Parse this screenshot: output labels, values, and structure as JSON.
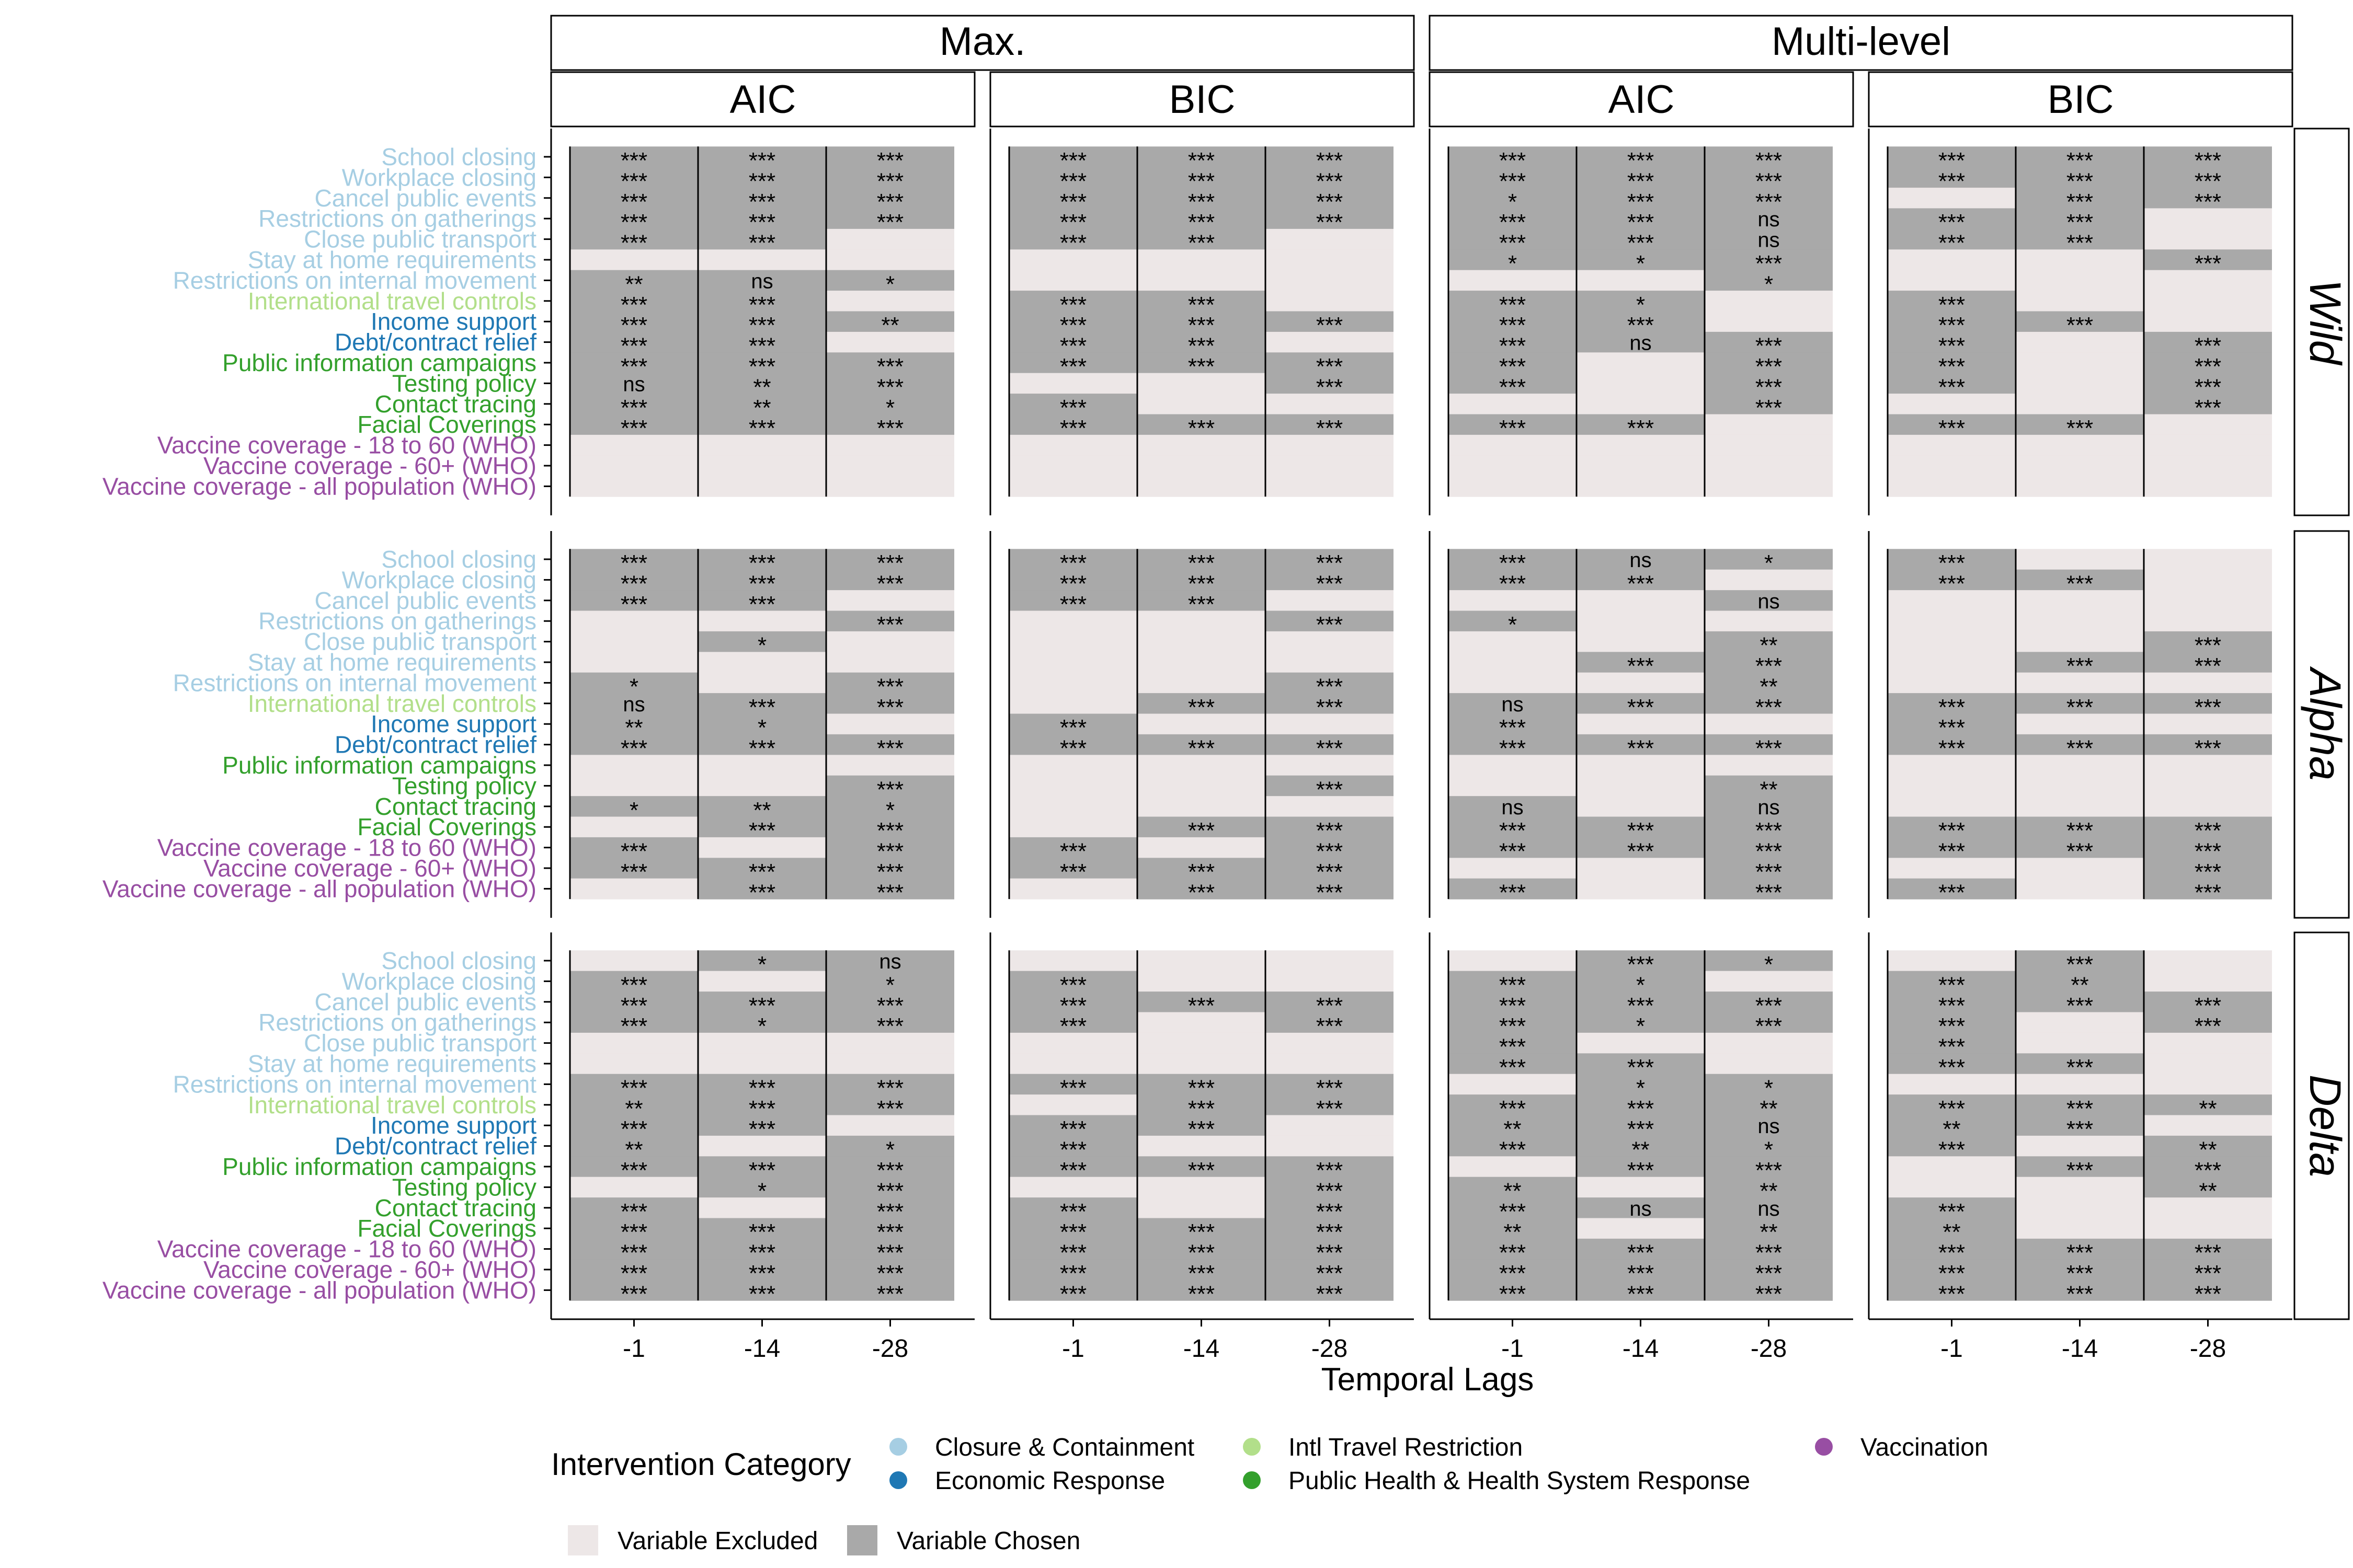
{
  "chart_data": {
    "type": "heatmap",
    "title": "",
    "xlabel": "Temporal Lags",
    "ylabel": "",
    "x": [
      "-1",
      "-14",
      "-28"
    ],
    "variables": [
      "School closing",
      "Workplace closing",
      "Cancel public events",
      "Restrictions on gatherings",
      "Close public transport",
      "Stay at home requirements",
      "Restrictions on internal movement",
      "International travel controls",
      "Income support",
      "Debt/contract relief",
      "Public information campaigns",
      "Testing policy",
      "Contact tracing",
      "Facial Coverings",
      "Vaccine coverage - 18 to 60 (WHO)",
      "Vaccine coverage - 60+ (WHO)",
      "Vaccine coverage - all population (WHO)"
    ],
    "variable_categories": [
      0,
      0,
      0,
      0,
      0,
      0,
      0,
      2,
      1,
      1,
      3,
      3,
      3,
      3,
      4,
      4,
      4
    ],
    "method_strips": [
      "Max.",
      "Multi-level"
    ],
    "criterion_strips": [
      "AIC",
      "BIC",
      "AIC",
      "BIC"
    ],
    "variants": [
      "Wild",
      "Alpha",
      "Delta"
    ],
    "legend": {
      "title": "Intervention Category",
      "categories": [
        {
          "name": "Closure & Containment",
          "color": "#a6cee3"
        },
        {
          "name": "Economic Response",
          "color": "#1f78b4"
        },
        {
          "name": "Intl Travel Restriction",
          "color": "#b2df8a"
        },
        {
          "name": "Public Health & Health System Response",
          "color": "#33a02c"
        },
        {
          "name": "Vaccination",
          "color": "#984ea3"
        }
      ],
      "fills": [
        {
          "name": "Variable Excluded",
          "color": "#ede7e7"
        },
        {
          "name": "Variable Chosen",
          "color": "#a9a9a9"
        }
      ]
    },
    "cells": {
      "Wild": [
        [
          [
            "***",
            "***",
            "***"
          ],
          [
            "***",
            "***",
            "***"
          ],
          [
            "***",
            "***",
            "***"
          ],
          [
            "***",
            "***",
            "***"
          ],
          [
            "***",
            "***",
            ""
          ],
          [
            "",
            "",
            ""
          ],
          [
            "**",
            "ns",
            "*"
          ],
          [
            "***",
            "***",
            ""
          ],
          [
            "***",
            "***",
            "**"
          ],
          [
            "***",
            "***",
            ""
          ],
          [
            "***",
            "***",
            "***"
          ],
          [
            "ns",
            "**",
            "***"
          ],
          [
            "***",
            "**",
            "*"
          ],
          [
            "***",
            "***",
            "***"
          ],
          [
            "",
            "",
            ""
          ],
          [
            "",
            "",
            ""
          ],
          [
            "",
            "",
            ""
          ]
        ],
        [
          [
            "***",
            "***",
            "***"
          ],
          [
            "***",
            "***",
            "***"
          ],
          [
            "***",
            "***",
            "***"
          ],
          [
            "***",
            "***",
            "***"
          ],
          [
            "***",
            "***",
            ""
          ],
          [
            "",
            "",
            ""
          ],
          [
            "",
            "",
            ""
          ],
          [
            "***",
            "***",
            ""
          ],
          [
            "***",
            "***",
            "***"
          ],
          [
            "***",
            "***",
            ""
          ],
          [
            "***",
            "***",
            "***"
          ],
          [
            "",
            "",
            "***"
          ],
          [
            "***",
            "",
            ""
          ],
          [
            "***",
            "***",
            "***"
          ],
          [
            "",
            "",
            ""
          ],
          [
            "",
            "",
            ""
          ],
          [
            "",
            "",
            ""
          ]
        ],
        [
          [
            "***",
            "***",
            "***"
          ],
          [
            "***",
            "***",
            "***"
          ],
          [
            "*",
            "***",
            "***"
          ],
          [
            "***",
            "***",
            "ns"
          ],
          [
            "***",
            "***",
            "ns"
          ],
          [
            "*",
            "*",
            "***"
          ],
          [
            "",
            "",
            "*"
          ],
          [
            "***",
            "*",
            ""
          ],
          [
            "***",
            "***",
            ""
          ],
          [
            "***",
            "ns",
            "***"
          ],
          [
            "***",
            "",
            "***"
          ],
          [
            "***",
            "",
            "***"
          ],
          [
            "",
            "",
            "***"
          ],
          [
            "***",
            "***",
            ""
          ],
          [
            "",
            "",
            ""
          ],
          [
            "",
            "",
            ""
          ],
          [
            "",
            "",
            ""
          ]
        ],
        [
          [
            "***",
            "***",
            "***"
          ],
          [
            "***",
            "***",
            "***"
          ],
          [
            "",
            "***",
            "***"
          ],
          [
            "***",
            "***",
            ""
          ],
          [
            "***",
            "***",
            ""
          ],
          [
            "",
            "",
            "***"
          ],
          [
            "",
            "",
            ""
          ],
          [
            "***",
            "",
            ""
          ],
          [
            "***",
            "***",
            ""
          ],
          [
            "***",
            "",
            "***"
          ],
          [
            "***",
            "",
            "***"
          ],
          [
            "***",
            "",
            "***"
          ],
          [
            "",
            "",
            "***"
          ],
          [
            "***",
            "***",
            ""
          ],
          [
            "",
            "",
            ""
          ],
          [
            "",
            "",
            ""
          ],
          [
            "",
            "",
            ""
          ]
        ]
      ],
      "Alpha": [
        [
          [
            "***",
            "***",
            "***"
          ],
          [
            "***",
            "***",
            "***"
          ],
          [
            "***",
            "***",
            ""
          ],
          [
            "",
            "",
            "***"
          ],
          [
            "",
            "*",
            ""
          ],
          [
            "",
            "",
            ""
          ],
          [
            "*",
            "",
            "***"
          ],
          [
            "ns",
            "***",
            "***"
          ],
          [
            "**",
            "*",
            ""
          ],
          [
            "***",
            "***",
            "***"
          ],
          [
            "",
            "",
            ""
          ],
          [
            "",
            "",
            "***"
          ],
          [
            "*",
            "**",
            "*"
          ],
          [
            "",
            "***",
            "***"
          ],
          [
            "***",
            "",
            "***"
          ],
          [
            "***",
            "***",
            "***"
          ],
          [
            "",
            "***",
            "***"
          ]
        ],
        [
          [
            "***",
            "***",
            "***"
          ],
          [
            "***",
            "***",
            "***"
          ],
          [
            "***",
            "***",
            ""
          ],
          [
            "",
            "",
            "***"
          ],
          [
            "",
            "",
            ""
          ],
          [
            "",
            "",
            ""
          ],
          [
            "",
            "",
            "***"
          ],
          [
            "",
            "***",
            "***"
          ],
          [
            "***",
            "",
            ""
          ],
          [
            "***",
            "***",
            "***"
          ],
          [
            "",
            "",
            ""
          ],
          [
            "",
            "",
            "***"
          ],
          [
            "",
            "",
            ""
          ],
          [
            "",
            "***",
            "***"
          ],
          [
            "***",
            "",
            "***"
          ],
          [
            "***",
            "***",
            "***"
          ],
          [
            "",
            "***",
            "***"
          ]
        ],
        [
          [
            "***",
            "ns",
            "*"
          ],
          [
            "***",
            "***",
            ""
          ],
          [
            "",
            "",
            "ns"
          ],
          [
            "*",
            "",
            ""
          ],
          [
            "",
            "",
            "**"
          ],
          [
            "",
            "***",
            "***"
          ],
          [
            "",
            "",
            "**"
          ],
          [
            "ns",
            "***",
            "***"
          ],
          [
            "***",
            "",
            ""
          ],
          [
            "***",
            "***",
            "***"
          ],
          [
            "",
            "",
            ""
          ],
          [
            "",
            "",
            "**"
          ],
          [
            "ns",
            "",
            "ns"
          ],
          [
            "***",
            "***",
            "***"
          ],
          [
            "***",
            "***",
            "***"
          ],
          [
            "",
            "",
            "***"
          ],
          [
            "***",
            "",
            "***"
          ]
        ],
        [
          [
            "***",
            "",
            ""
          ],
          [
            "***",
            "***",
            ""
          ],
          [
            "",
            "",
            ""
          ],
          [
            "",
            "",
            ""
          ],
          [
            "",
            "",
            "***"
          ],
          [
            "",
            "***",
            "***"
          ],
          [
            "",
            "",
            ""
          ],
          [
            "***",
            "***",
            "***"
          ],
          [
            "***",
            "",
            ""
          ],
          [
            "***",
            "***",
            "***"
          ],
          [
            "",
            "",
            ""
          ],
          [
            "",
            "",
            ""
          ],
          [
            "",
            "",
            ""
          ],
          [
            "***",
            "***",
            "***"
          ],
          [
            "***",
            "***",
            "***"
          ],
          [
            "",
            "",
            "***"
          ],
          [
            "***",
            "",
            "***"
          ]
        ]
      ],
      "Delta": [
        [
          [
            "",
            "*",
            "ns"
          ],
          [
            "***",
            "",
            "*"
          ],
          [
            "***",
            "***",
            "***"
          ],
          [
            "***",
            "*",
            "***"
          ],
          [
            "",
            "",
            ""
          ],
          [
            "",
            "",
            ""
          ],
          [
            "***",
            "***",
            "***"
          ],
          [
            "**",
            "***",
            "***"
          ],
          [
            "***",
            "***",
            ""
          ],
          [
            "**",
            "",
            "*"
          ],
          [
            "***",
            "***",
            "***"
          ],
          [
            "",
            "*",
            "***"
          ],
          [
            "***",
            "",
            "***"
          ],
          [
            "***",
            "***",
            "***"
          ],
          [
            "***",
            "***",
            "***"
          ],
          [
            "***",
            "***",
            "***"
          ],
          [
            "***",
            "***",
            "***"
          ]
        ],
        [
          [
            "",
            "",
            ""
          ],
          [
            "***",
            "",
            ""
          ],
          [
            "***",
            "***",
            "***"
          ],
          [
            "***",
            "",
            "***"
          ],
          [
            "",
            "",
            ""
          ],
          [
            "",
            "",
            ""
          ],
          [
            "***",
            "***",
            "***"
          ],
          [
            "",
            "***",
            "***"
          ],
          [
            "***",
            "***",
            ""
          ],
          [
            "***",
            "",
            ""
          ],
          [
            "***",
            "***",
            "***"
          ],
          [
            "",
            "",
            "***"
          ],
          [
            "***",
            "",
            "***"
          ],
          [
            "***",
            "***",
            "***"
          ],
          [
            "***",
            "***",
            "***"
          ],
          [
            "***",
            "***",
            "***"
          ],
          [
            "***",
            "***",
            "***"
          ]
        ],
        [
          [
            "",
            "***",
            "*"
          ],
          [
            "***",
            "*",
            ""
          ],
          [
            "***",
            "***",
            "***"
          ],
          [
            "***",
            "*",
            "***"
          ],
          [
            "***",
            "",
            ""
          ],
          [
            "***",
            "***",
            ""
          ],
          [
            "",
            "*",
            "*"
          ],
          [
            "***",
            "***",
            "**"
          ],
          [
            "**",
            "***",
            "ns"
          ],
          [
            "***",
            "**",
            "*"
          ],
          [
            "",
            "***",
            "***"
          ],
          [
            "**",
            "",
            "**"
          ],
          [
            "***",
            "ns",
            "ns"
          ],
          [
            "**",
            "",
            "**"
          ],
          [
            "***",
            "***",
            "***"
          ],
          [
            "***",
            "***",
            "***"
          ],
          [
            "***",
            "***",
            "***"
          ]
        ],
        [
          [
            "",
            "***",
            ""
          ],
          [
            "***",
            "**",
            ""
          ],
          [
            "***",
            "***",
            "***"
          ],
          [
            "***",
            "",
            "***"
          ],
          [
            "***",
            "",
            ""
          ],
          [
            "***",
            "***",
            ""
          ],
          [
            "",
            "",
            ""
          ],
          [
            "***",
            "***",
            "**"
          ],
          [
            "**",
            "***",
            ""
          ],
          [
            "***",
            "",
            "**"
          ],
          [
            "",
            "***",
            "***"
          ],
          [
            "",
            "",
            "**"
          ],
          [
            "***",
            "",
            ""
          ],
          [
            "**",
            "",
            ""
          ],
          [
            "***",
            "***",
            "***"
          ],
          [
            "***",
            "***",
            "***"
          ],
          [
            "***",
            "***",
            "***"
          ]
        ]
      ]
    }
  }
}
